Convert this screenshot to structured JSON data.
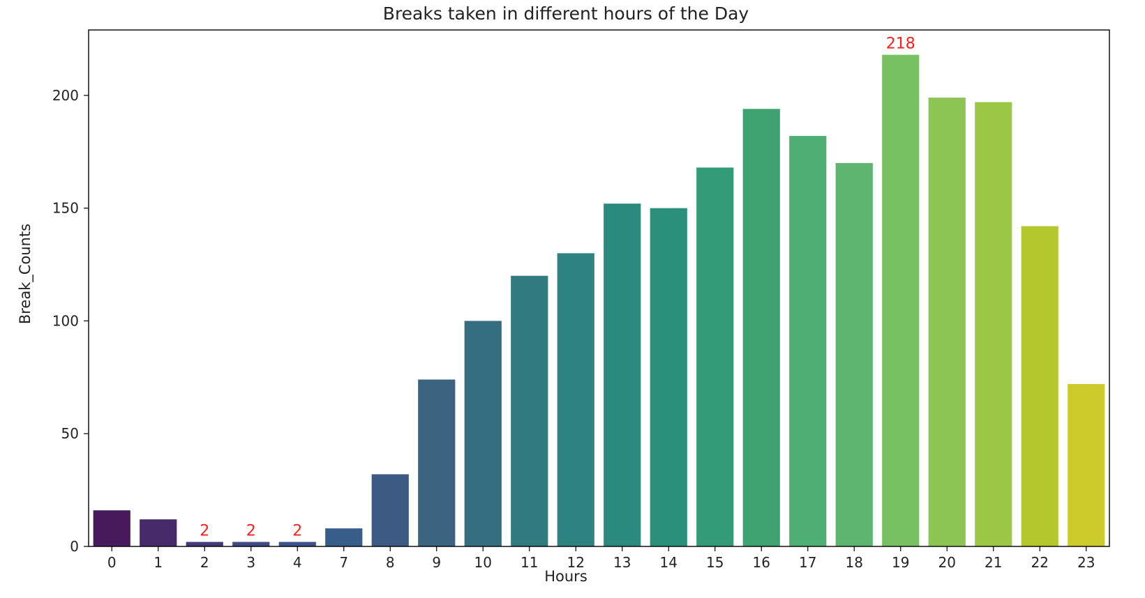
{
  "chart_data": {
    "type": "bar",
    "title": "Breaks taken in different hours of the Day",
    "xlabel": "Hours",
    "ylabel": "Break_Counts",
    "categories": [
      "0",
      "1",
      "2",
      "3",
      "4",
      "7",
      "8",
      "9",
      "10",
      "11",
      "12",
      "13",
      "14",
      "15",
      "16",
      "17",
      "18",
      "19",
      "20",
      "21",
      "22",
      "23"
    ],
    "values": [
      16,
      12,
      2,
      2,
      2,
      8,
      32,
      74,
      100,
      120,
      130,
      152,
      150,
      168,
      194,
      182,
      170,
      218,
      199,
      197,
      142,
      72
    ],
    "colors": [
      "#481a5c",
      "#472a6a",
      "#433a7a",
      "#3f4a86",
      "#3b5388",
      "#375d8b",
      "#3d5b82",
      "#3a6480",
      "#356e80",
      "#317a80",
      "#2e8280",
      "#2b8a7e",
      "#2a907c",
      "#349b78",
      "#3fa271",
      "#4fae73",
      "#5db56f",
      "#78c163",
      "#8cc553",
      "#9cc646",
      "#b4c82e",
      "#cdca2b"
    ],
    "data_labels": [
      {
        "category": "2",
        "text": "2"
      },
      {
        "category": "3",
        "text": "2"
      },
      {
        "category": "4",
        "text": "2"
      },
      {
        "category": "19",
        "text": "218"
      }
    ],
    "data_label_color": "#ff1f1f",
    "yticks": [
      0,
      50,
      100,
      150,
      200
    ],
    "ylim": [
      0,
      229
    ],
    "grid": false,
    "legend": "none"
  }
}
